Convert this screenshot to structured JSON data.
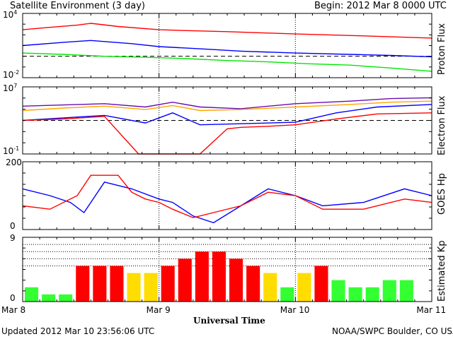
{
  "header": {
    "title": "Satellite Environment (3 day)",
    "begin": "Begin:  2012 Mar 8 0000 UTC"
  },
  "footer": {
    "updated": "Updated 2012 Mar 10 23:56:06 UTC",
    "credit": "NOAA/SWPC Boulder, CO USA"
  },
  "x_axis": {
    "title": "Universal Time",
    "ticks": [
      "Mar 8",
      "Mar 9",
      "Mar 10",
      "Mar 11"
    ]
  },
  "colors": {
    "red": "#ff0000",
    "blue": "#0000ff",
    "green": "#00e600",
    "orange": "#ffa500",
    "purple": "#6a0dad",
    "kp_green": "#33ff33",
    "kp_yellow": "#ffdd00",
    "kp_red": "#ff0000"
  },
  "chart_data": [
    {
      "type": "line",
      "ylabel": "Proton Flux",
      "ylim": [
        "1e-2",
        "1e4"
      ],
      "yscale": "log",
      "yticks": [
        {
          "base": "10",
          "exp": "4"
        },
        {
          "base": "10",
          "exp": "-2"
        }
      ],
      "reference_line": 1,
      "x_unit": "days since Mar 8 0000 UTC",
      "series": [
        {
          "color": "red",
          "x": [
            0,
            0.2,
            0.4,
            0.5,
            0.7,
            1.0,
            1.2,
            1.5,
            2.0,
            2.5,
            3.0
          ],
          "y": [
            300,
            500,
            800,
            1200,
            600,
            300,
            250,
            200,
            120,
            80,
            50
          ]
        },
        {
          "color": "blue",
          "x": [
            0,
            0.3,
            0.5,
            0.8,
            1.0,
            1.3,
            1.6,
            2.0,
            2.4,
            2.7,
            3.0
          ],
          "y": [
            10,
            20,
            30,
            15,
            8,
            5,
            3,
            2,
            1.5,
            1.2,
            0.9
          ]
        },
        {
          "color": "green",
          "x": [
            0,
            0.3,
            0.6,
            0.9,
            1.2,
            1.5,
            1.8,
            2.1,
            2.4,
            2.7,
            3.0
          ],
          "y": [
            2,
            1.5,
            1,
            0.8,
            0.6,
            0.4,
            0.3,
            0.2,
            0.15,
            0.08,
            0.04
          ]
        }
      ]
    },
    {
      "type": "line",
      "ylabel": "Electron Flux",
      "ylim": [
        "1e-1",
        "1e7"
      ],
      "yscale": "log",
      "yticks": [
        {
          "base": "10",
          "exp": "7"
        },
        {
          "base": "10",
          "exp": "-1"
        }
      ],
      "reference_line": 1000,
      "x_unit": "days since Mar 8 0000 UTC",
      "series": [
        {
          "color": "purple",
          "x": [
            0,
            0.3,
            0.6,
            0.9,
            1.1,
            1.3,
            1.6,
            2.0,
            2.4,
            2.7,
            3.0
          ],
          "y": [
            50000,
            70000,
            100000,
            40000,
            150000,
            40000,
            25000,
            100000,
            200000,
            400000,
            500000
          ]
        },
        {
          "color": "orange",
          "x": [
            0,
            0.3,
            0.6,
            0.9,
            1.1,
            1.3,
            1.6,
            2.0,
            2.4,
            2.7,
            3.0
          ],
          "y": [
            15000,
            30000,
            50000,
            20000,
            60000,
            15000,
            20000,
            40000,
            80000,
            150000,
            200000
          ]
        },
        {
          "color": "blue",
          "x": [
            0,
            0.3,
            0.6,
            0.9,
            1.1,
            1.3,
            1.6,
            2.0,
            2.3,
            2.6,
            3.0
          ],
          "y": [
            1000,
            2000,
            4000,
            500,
            8000,
            300,
            400,
            600,
            8000,
            40000,
            80000
          ]
        },
        {
          "color": "red",
          "x": [
            0,
            0.3,
            0.6,
            0.85,
            0.9,
            1.1,
            1.3,
            1.5,
            1.6,
            1.8,
            2.0,
            2.3,
            2.6,
            3.0
          ],
          "y": [
            1000,
            1500,
            3000,
            0.1,
            0.1,
            0.1,
            0.1,
            100,
            150,
            200,
            300,
            1500,
            6000,
            8000
          ]
        }
      ]
    },
    {
      "type": "line",
      "ylabel": "GOES Hp",
      "ylim": [
        0,
        200
      ],
      "yticks": [
        "200",
        "0"
      ],
      "x_unit": "days since Mar 8 0000 UTC",
      "series": [
        {
          "color": "blue",
          "x": [
            0,
            0.2,
            0.35,
            0.45,
            0.6,
            0.8,
            1.0,
            1.1,
            1.25,
            1.4,
            1.6,
            1.8,
            2.0,
            2.2,
            2.5,
            2.8,
            3.0
          ],
          "y": [
            120,
            100,
            80,
            50,
            140,
            120,
            90,
            80,
            40,
            20,
            70,
            120,
            100,
            70,
            80,
            120,
            100
          ]
        },
        {
          "color": "red",
          "x": [
            0,
            0.2,
            0.4,
            0.5,
            0.7,
            0.8,
            0.9,
            1.0,
            1.1,
            1.25,
            1.4,
            1.6,
            1.8,
            2.0,
            2.2,
            2.5,
            2.8,
            3.0
          ],
          "y": [
            70,
            60,
            100,
            160,
            160,
            110,
            90,
            80,
            60,
            35,
            50,
            70,
            110,
            100,
            60,
            60,
            90,
            80
          ]
        }
      ]
    },
    {
      "type": "bar",
      "ylabel": "Estimated Kp",
      "ylim": [
        0,
        9
      ],
      "yticks": [
        "9",
        "0"
      ],
      "gridlines": [
        5,
        6,
        7,
        8
      ],
      "x_unit": "days since Mar 8 0000 UTC",
      "bar_width_days": 0.125,
      "values": [
        2,
        1,
        1,
        5,
        5,
        5,
        4,
        4,
        5,
        6,
        7,
        7,
        6,
        5,
        4,
        2,
        4,
        5,
        3,
        2,
        2,
        3,
        3
      ],
      "bar_colors": [
        "kp_green",
        "kp_green",
        "kp_green",
        "kp_red",
        "kp_red",
        "kp_red",
        "kp_yellow",
        "kp_yellow",
        "kp_red",
        "kp_red",
        "kp_red",
        "kp_red",
        "kp_red",
        "kp_red",
        "kp_yellow",
        "kp_green",
        "kp_yellow",
        "kp_red",
        "kp_green",
        "kp_green",
        "kp_green",
        "kp_green",
        "kp_green"
      ]
    }
  ]
}
